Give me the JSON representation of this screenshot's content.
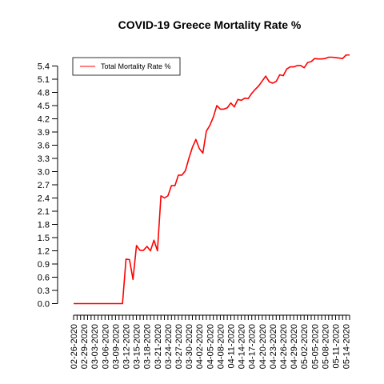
{
  "chart_data": {
    "type": "line",
    "title": "COVID-19 Greece Mortality Rate %",
    "xlabel": "",
    "ylabel": "",
    "ylim": [
      0,
      5.6
    ],
    "y_ticks": [
      "0.0",
      "0.3",
      "0.6",
      "0.9",
      "1.2",
      "1.5",
      "1.8",
      "2.1",
      "2.4",
      "2.7",
      "3.0",
      "3.3",
      "3.6",
      "3.9",
      "4.2",
      "4.5",
      "4.8",
      "5.1",
      "5.4"
    ],
    "x_tick_labels": [
      "02-26-2020",
      "02-29-2020",
      "03-03-2020",
      "03-06-2020",
      "03-09-2020",
      "03-12-2020",
      "03-15-2020",
      "03-18-2020",
      "03-21-2020",
      "03-24-2020",
      "03-27-2020",
      "03-30-2020",
      "04-02-2020",
      "04-05-2020",
      "04-08-2020",
      "04-11-2020",
      "04-14-2020",
      "04-17-2020",
      "04-20-2020",
      "04-23-2020",
      "04-26-2020",
      "04-29-2020",
      "05-02-2020",
      "05-05-2020",
      "05-08-2020",
      "05-11-2020",
      "05-14-2020"
    ],
    "x_start": "02-26-2020",
    "x_end": "05-15-2020",
    "legend": {
      "position": "top-left",
      "entries": [
        "Total Mortality Rate %"
      ]
    },
    "series": [
      {
        "name": "Total Mortality Rate %",
        "color": "#ff0000",
        "x": [
          "02-26-2020",
          "02-27-2020",
          "02-28-2020",
          "02-29-2020",
          "03-01-2020",
          "03-02-2020",
          "03-03-2020",
          "03-04-2020",
          "03-05-2020",
          "03-06-2020",
          "03-07-2020",
          "03-08-2020",
          "03-09-2020",
          "03-10-2020",
          "03-11-2020",
          "03-12-2020",
          "03-13-2020",
          "03-14-2020",
          "03-15-2020",
          "03-16-2020",
          "03-17-2020",
          "03-18-2020",
          "03-19-2020",
          "03-20-2020",
          "03-21-2020",
          "03-22-2020",
          "03-23-2020",
          "03-24-2020",
          "03-25-2020",
          "03-26-2020",
          "03-27-2020",
          "03-28-2020",
          "03-29-2020",
          "03-30-2020",
          "03-31-2020",
          "04-01-2020",
          "04-02-2020",
          "04-03-2020",
          "04-04-2020",
          "04-05-2020",
          "04-06-2020",
          "04-07-2020",
          "04-08-2020",
          "04-09-2020",
          "04-10-2020",
          "04-11-2020",
          "04-12-2020",
          "04-13-2020",
          "04-14-2020",
          "04-15-2020",
          "04-16-2020",
          "04-17-2020",
          "04-18-2020",
          "04-19-2020",
          "04-20-2020",
          "04-21-2020",
          "04-22-2020",
          "04-23-2020",
          "04-24-2020",
          "04-25-2020",
          "04-26-2020",
          "04-27-2020",
          "04-28-2020",
          "04-29-2020",
          "04-30-2020",
          "05-01-2020",
          "05-02-2020",
          "05-03-2020",
          "05-04-2020",
          "05-05-2020",
          "05-06-2020",
          "05-07-2020",
          "05-08-2020",
          "05-09-2020",
          "05-10-2020",
          "05-11-2020",
          "05-12-2020",
          "05-13-2020",
          "05-14-2020",
          "05-15-2020"
        ],
        "values": [
          0,
          0,
          0,
          0,
          0,
          0,
          0,
          0,
          0,
          0,
          0,
          0,
          0,
          0,
          0,
          1.01,
          1.0,
          0.55,
          1.32,
          1.21,
          1.21,
          1.3,
          1.2,
          1.44,
          1.2,
          2.45,
          2.4,
          2.45,
          2.68,
          2.68,
          2.92,
          2.92,
          3.02,
          3.3,
          3.55,
          3.73,
          3.52,
          3.42,
          3.92,
          4.05,
          4.24,
          4.5,
          4.42,
          4.42,
          4.45,
          4.56,
          4.47,
          4.64,
          4.62,
          4.67,
          4.66,
          4.78,
          4.87,
          4.95,
          5.06,
          5.17,
          5.04,
          5.01,
          5.05,
          5.2,
          5.18,
          5.33,
          5.38,
          5.38,
          5.41,
          5.41,
          5.36,
          5.48,
          5.5,
          5.57,
          5.56,
          5.56,
          5.57,
          5.6,
          5.6,
          5.59,
          5.58,
          5.57,
          5.65,
          5.65
        ]
      }
    ]
  }
}
